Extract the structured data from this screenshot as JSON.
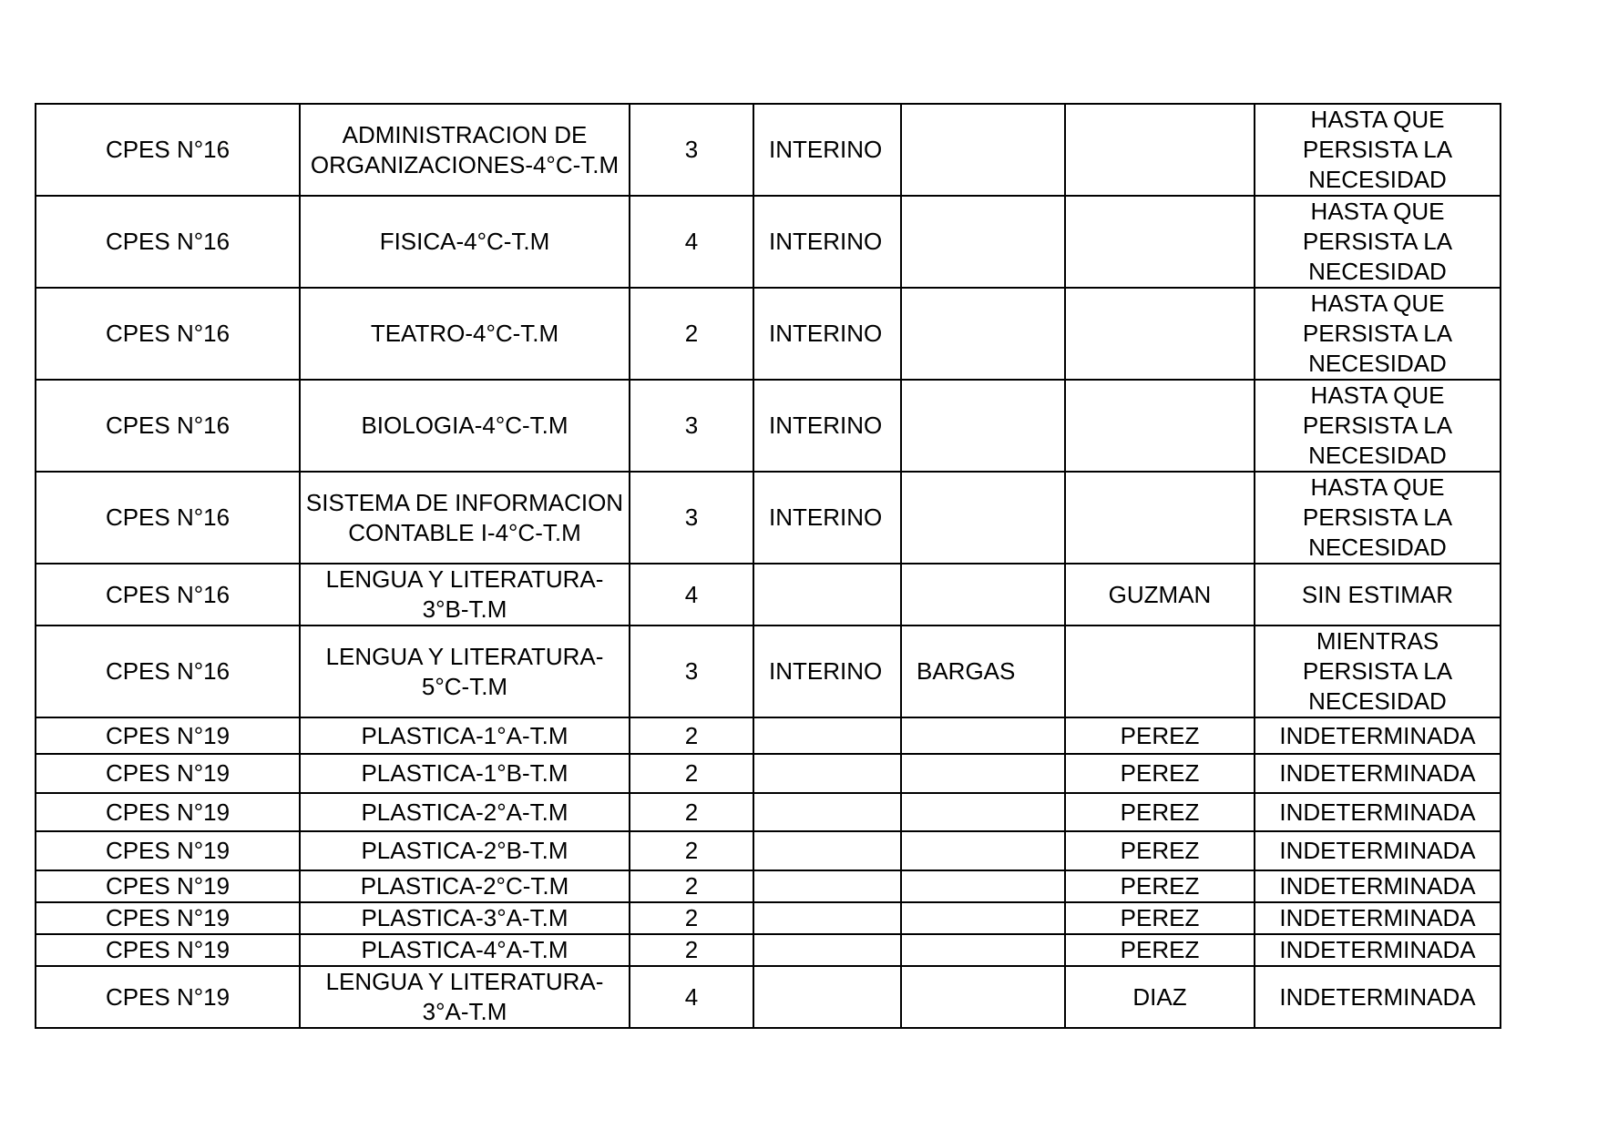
{
  "rows": [
    {
      "school": "CPES N°16",
      "subject": "ADMINISTRACION DE ORGANIZACIONES-4°C-T.M",
      "hours": "3",
      "status": "INTERINO",
      "name1": "",
      "name2": "",
      "duration": "HASTA QUE PERSISTA LA NECESIDAD"
    },
    {
      "school": "CPES N°16",
      "subject": "FISICA-4°C-T.M",
      "hours": "4",
      "status": "INTERINO",
      "name1": "",
      "name2": "",
      "duration": "HASTA QUE PERSISTA LA NECESIDAD"
    },
    {
      "school": "CPES N°16",
      "subject": "TEATRO-4°C-T.M",
      "hours": "2",
      "status": "INTERINO",
      "name1": "",
      "name2": "",
      "duration": "HASTA QUE PERSISTA LA NECESIDAD"
    },
    {
      "school": "CPES N°16",
      "subject": "BIOLOGIA-4°C-T.M",
      "hours": "3",
      "status": "INTERINO",
      "name1": "",
      "name2": "",
      "duration": "HASTA QUE PERSISTA LA NECESIDAD"
    },
    {
      "school": "CPES N°16",
      "subject": "SISTEMA DE INFORMACION CONTABLE I-4°C-T.M",
      "hours": "3",
      "status": "INTERINO",
      "name1": "",
      "name2": "",
      "duration": "HASTA QUE PERSISTA LA NECESIDAD"
    },
    {
      "school": "CPES N°16",
      "subject": "LENGUA Y LITERATURA-3°B-T.M",
      "hours": "4",
      "status": "",
      "name1": "",
      "name2": "GUZMAN",
      "duration": "SIN ESTIMAR"
    },
    {
      "school": "CPES N°16",
      "subject": "LENGUA Y LITERATURA-5°C-T.M",
      "hours": "3",
      "status": "INTERINO",
      "name1": "BARGAS",
      "name2": "",
      "duration": "MIENTRAS PERSISTA LA NECESIDAD"
    },
    {
      "school": "CPES N°19",
      "subject": "PLASTICA-1°A-T.M",
      "hours": "2",
      "status": "",
      "name1": "",
      "name2": "PEREZ",
      "duration": "INDETERMINADA"
    },
    {
      "school": "CPES N°19",
      "subject": "PLASTICA-1°B-T.M",
      "hours": "2",
      "status": "",
      "name1": "",
      "name2": "PEREZ",
      "duration": "INDETERMINADA"
    },
    {
      "school": "CPES N°19",
      "subject": "PLASTICA-2°A-T.M",
      "hours": "2",
      "status": "",
      "name1": "",
      "name2": "PEREZ",
      "duration": "INDETERMINADA"
    },
    {
      "school": "CPES N°19",
      "subject": "PLASTICA-2°B-T.M",
      "hours": "2",
      "status": "",
      "name1": "",
      "name2": "PEREZ",
      "duration": "INDETERMINADA"
    },
    {
      "school": "CPES N°19",
      "subject": "PLASTICA-2°C-T.M",
      "hours": "2",
      "status": "",
      "name1": "",
      "name2": "PEREZ",
      "duration": "INDETERMINADA"
    },
    {
      "school": "CPES N°19",
      "subject": "PLASTICA-3°A-T.M",
      "hours": "2",
      "status": "",
      "name1": "",
      "name2": "PEREZ",
      "duration": "INDETERMINADA"
    },
    {
      "school": "CPES N°19",
      "subject": "PLASTICA-4°A-T.M",
      "hours": "2",
      "status": "",
      "name1": "",
      "name2": "PEREZ",
      "duration": "INDETERMINADA"
    },
    {
      "school": "CPES N°19",
      "subject": "LENGUA Y LITERATURA-3°A-T.M",
      "hours": "4",
      "status": "",
      "name1": "",
      "name2": "DIAZ",
      "duration": "INDETERMINADA"
    }
  ]
}
